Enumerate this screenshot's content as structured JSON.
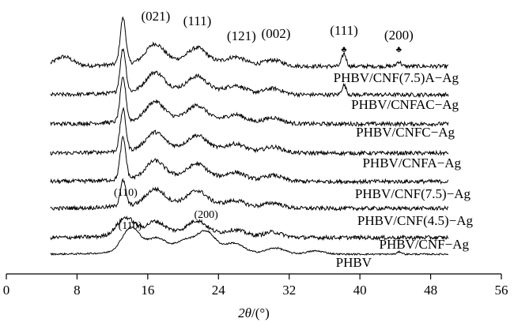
{
  "chart_data": {
    "type": "line",
    "xlabel_italic": "2θ",
    "xlabel_unit": "/(°)",
    "xlim": [
      0,
      56
    ],
    "x_ticks": [
      0,
      8,
      16,
      24,
      32,
      40,
      48,
      56
    ],
    "x_ticks_text": [
      "0",
      "8",
      "16",
      "24",
      "32",
      "40",
      "48",
      "56"
    ],
    "x_range": [
      5,
      50
    ],
    "curve_labels": [
      "PHBV/CNF(7.5)A−Ag",
      "PHBV/CNFAC−Ag",
      "PHBV/CNFC−Ag",
      "PHBV/CNFA−Ag",
      "PHBV/CNF(7.5)−Ag",
      "PHBV/CNF(4.5)−Ag",
      "PHBV/CNF−Ag",
      "PHBV"
    ],
    "peak_labels": [
      {
        "text": "(021)",
        "x": 16.9
      },
      {
        "text": "(111)",
        "x": 21.6
      },
      {
        "text": "(121)",
        "x": 26.6
      },
      {
        "text": "(002)",
        "x": 30.5
      },
      {
        "text": "(111)",
        "x": 38.2
      },
      {
        "text": "(200)",
        "x": 44.4
      },
      {
        "text": "(110)",
        "x": 13.5
      },
      {
        "text": "(110)",
        "x": 14.0
      },
      {
        "text": "(200)",
        "x": 22.6
      }
    ],
    "silver_markers": [
      {
        "symbol": "♣",
        "x": 38.2
      },
      {
        "symbol": "♣",
        "x": 44.4
      }
    ],
    "series": [
      {
        "peaks": [
          [
            6.5,
            12
          ],
          [
            13.2,
            58
          ],
          [
            16.8,
            22
          ],
          [
            21.6,
            16
          ],
          [
            26.0,
            8
          ],
          [
            30.2,
            7
          ],
          [
            38.2,
            16
          ],
          [
            44.4,
            6
          ]
        ]
      },
      {
        "peaks": [
          [
            13.2,
            55
          ],
          [
            16.8,
            22
          ],
          [
            21.6,
            16
          ],
          [
            26.0,
            8
          ],
          [
            30.2,
            7
          ],
          [
            38.2,
            12
          ]
        ]
      },
      {
        "peaks": [
          [
            13.2,
            55
          ],
          [
            16.8,
            22
          ],
          [
            21.6,
            16
          ],
          [
            26.0,
            8
          ],
          [
            30.2,
            7
          ]
        ]
      },
      {
        "peaks": [
          [
            13.2,
            52
          ],
          [
            16.8,
            20
          ],
          [
            21.6,
            15
          ],
          [
            26.0,
            8
          ],
          [
            30.2,
            7
          ]
        ]
      },
      {
        "peaks": [
          [
            13.2,
            52
          ],
          [
            16.8,
            20
          ],
          [
            21.6,
            15
          ],
          [
            26.0,
            8
          ],
          [
            30.2,
            7
          ]
        ]
      },
      {
        "peaks": [
          [
            13.2,
            32
          ],
          [
            16.8,
            18
          ],
          [
            21.6,
            15
          ],
          [
            26.0,
            6
          ],
          [
            30.2,
            6
          ]
        ]
      },
      {
        "peaks": [
          [
            13.5,
            22
          ],
          [
            16.8,
            14
          ],
          [
            21.6,
            14
          ],
          [
            26.0,
            6
          ],
          [
            30.2,
            6
          ]
        ]
      },
      {
        "peaks": [
          [
            14.1,
            30
          ],
          [
            17.0,
            14
          ],
          [
            20.3,
            10
          ],
          [
            22.6,
            22
          ],
          [
            25.8,
            10
          ],
          [
            30.5,
            7
          ],
          [
            35.0,
            4
          ],
          [
            44.5,
            3
          ]
        ]
      }
    ]
  }
}
